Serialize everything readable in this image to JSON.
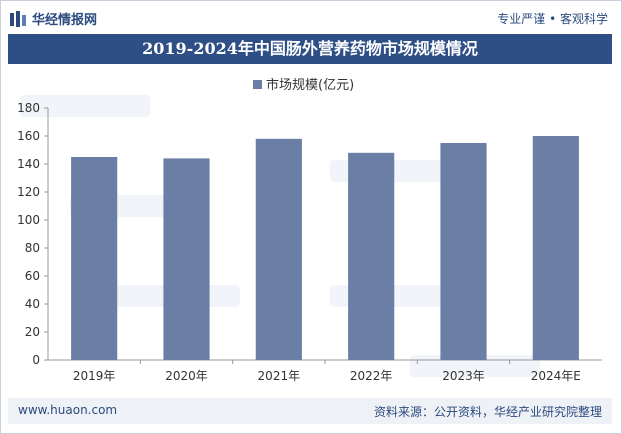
{
  "header": {
    "logo_text": "华经情报网",
    "slogan": "专业严谨 • 客观科学"
  },
  "colors": {
    "title_bg": "#2e4f86",
    "bar": "#6b7fa6",
    "text": "#2c4a7f"
  },
  "footer": {
    "website": "www.huaon.com",
    "source": "资料来源：公开资料，华经产业研究院整理"
  },
  "chart_data": {
    "type": "bar",
    "title": "2019-2024年中国肠外营养药物市场规模情况",
    "xlabel": "",
    "ylabel": "",
    "categories": [
      "2019年",
      "2020年",
      "2021年",
      "2022年",
      "2023年",
      "2024年E"
    ],
    "series": [
      {
        "name": "市场规模(亿元)",
        "values": [
          145,
          144,
          158,
          148,
          155,
          160
        ]
      }
    ],
    "ylim": [
      0,
      180
    ],
    "yticks": [
      0,
      20,
      40,
      60,
      80,
      100,
      120,
      140,
      160,
      180
    ],
    "grid": false,
    "legend": "top-center"
  }
}
